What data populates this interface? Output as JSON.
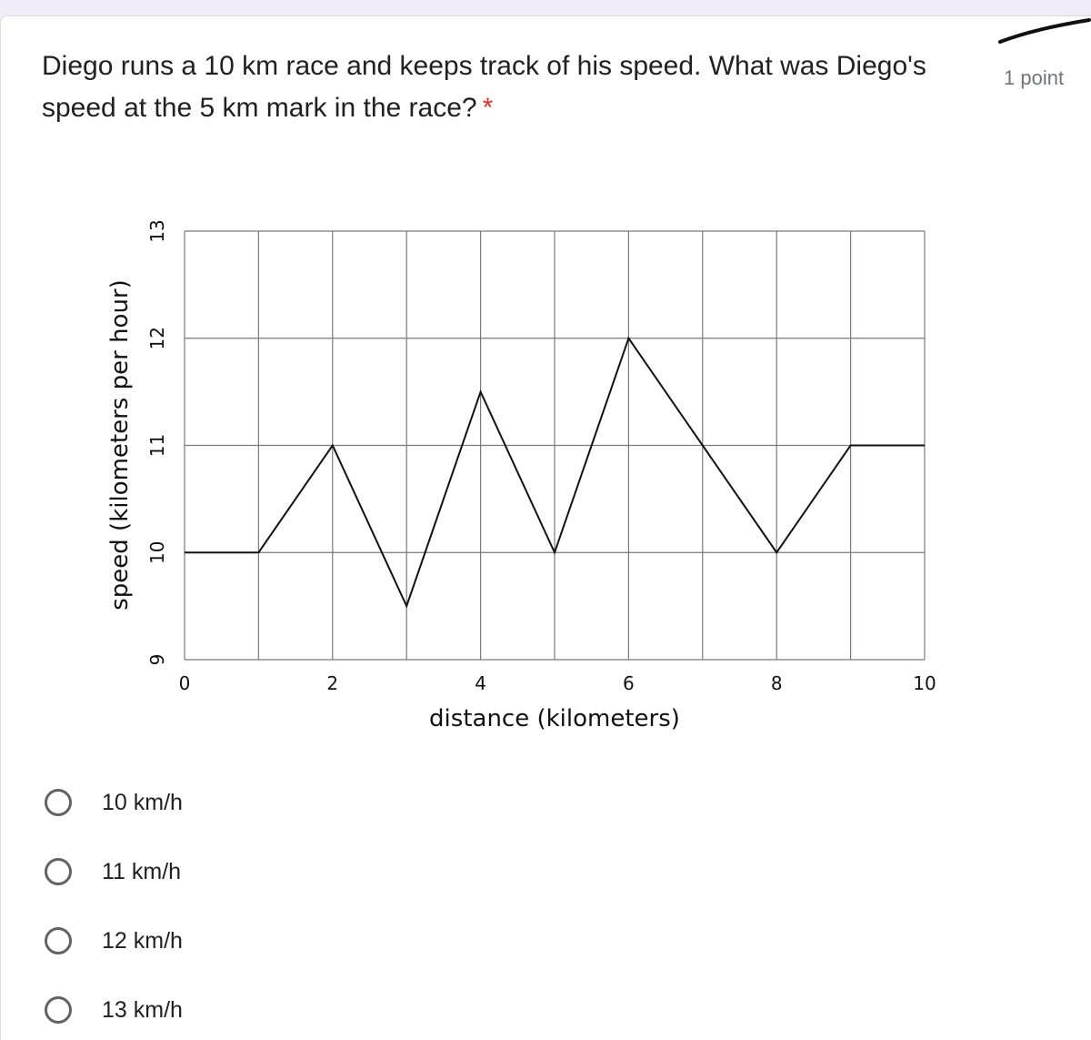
{
  "question": {
    "text": "Diego runs a 10 km race and keeps track of his speed. What was Diego's speed at the 5 km mark in the race?",
    "required_mark": "*",
    "points": "1 point"
  },
  "chart_data": {
    "type": "line",
    "xlabel": "distance (kilometers)",
    "ylabel": "speed (kilometers per hour)",
    "xlim": [
      0,
      10
    ],
    "ylim": [
      9,
      13
    ],
    "xticks": [
      0,
      2,
      4,
      6,
      8,
      10
    ],
    "yticks": [
      9,
      10,
      11,
      12,
      13
    ],
    "grid": true,
    "x": [
      0,
      1,
      2,
      3,
      4,
      5,
      6,
      7,
      8,
      9,
      10
    ],
    "y": [
      10,
      10,
      11,
      9.5,
      11.5,
      10,
      12,
      11,
      10,
      11,
      11
    ]
  },
  "options": [
    {
      "label": "10 km/h"
    },
    {
      "label": "11 km/h"
    },
    {
      "label": "12 km/h"
    },
    {
      "label": "13 km/h"
    }
  ]
}
